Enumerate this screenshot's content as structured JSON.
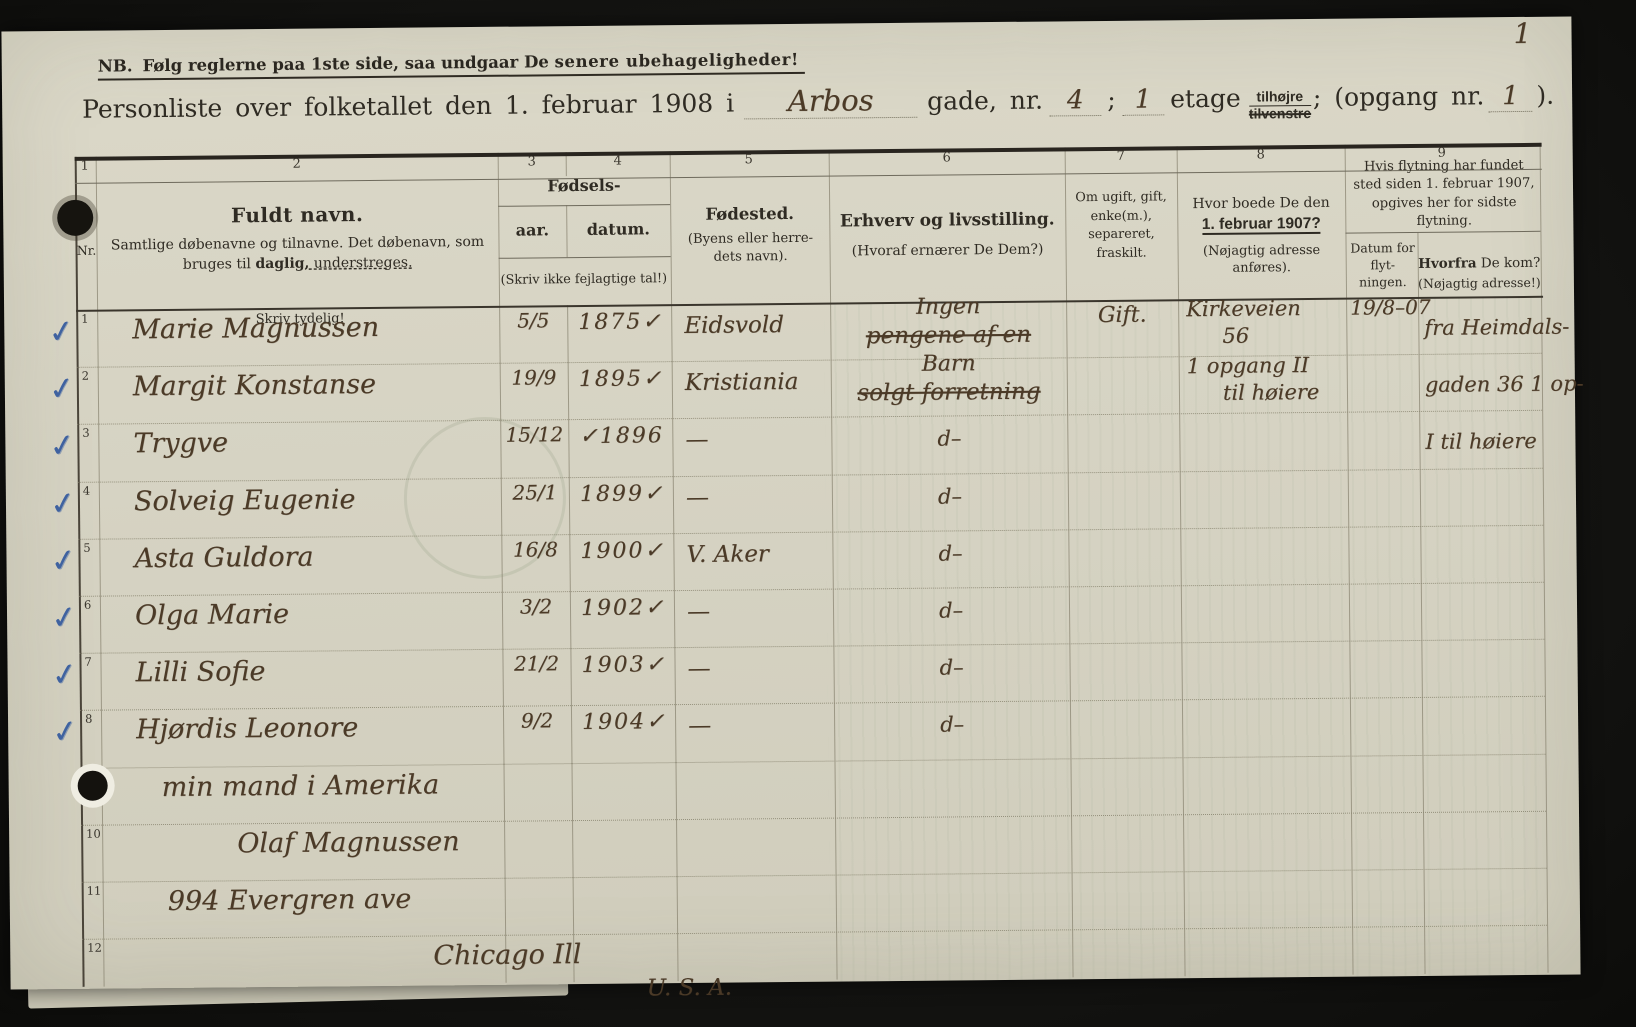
{
  "page": {
    "page_number": "1"
  },
  "notice": {
    "nb": "NB.",
    "text_pre": "Følg reglerne paa 1ste side, saa undgaar De ",
    "text_bold": "senere ubehageligheder!"
  },
  "title": {
    "prefix": "Personliste over folketallet den 1. februar 1908 i",
    "street_value": "Arbos",
    "gade_label": "gade, nr.",
    "street_no": "4",
    "sep1": ";",
    "floor_value": "1",
    "etage_label": "etage",
    "direction_top": "tilhøjre",
    "direction_bottom": "tilvenstre",
    "opgang_label": "; (opgang nr.",
    "opgang_value": "1",
    "close": ")."
  },
  "table": {
    "column_numbers": [
      "1",
      "2",
      "3",
      "4",
      "5",
      "6",
      "7",
      "8",
      "9"
    ],
    "headers": {
      "nr": "Nr.",
      "name_title": "Fuldt navn.",
      "name_sub_a": "Samtlige døbenavne og tilnavne.  Det døbenavn, som bruges til ",
      "name_sub_bold": "daglig,",
      "name_sub_ul": " understreges.",
      "birth_group": "Fødsels-",
      "birth_year": "aar.",
      "birth_date": "datum.",
      "birth_note": "(Skriv ikke fejlagtige tal!)",
      "birthplace_title": "Fødested.",
      "birthplace_sub": "(Byens eller herre-dets navn).",
      "occupation_title": "Erhverv og livsstilling.",
      "occupation_sub": "(Hvoraf ernærer De Dem?)",
      "marital": "Om ugift, gift, enke(m.), separeret, fraskilt.",
      "residence_line1": "Hvor boede De den",
      "residence_line2": "1. februar 1907?",
      "residence_sub": "(Nøjagtig adresse anføres).",
      "moving_group": "Hvis flytning har fundet sted siden 1. februar 1907, opgives her for sidste flytning.",
      "moving_date_label": "Datum for flyt-ningen.",
      "moving_from_bold": "Hvorfra",
      "moving_from_rest": " De kom?",
      "moving_from_sub": "(Nøjagtig adresse!)",
      "write_clearly": "Skriv tydelig!"
    },
    "rows": [
      {
        "nr": "1",
        "check_glyph": "✓",
        "name": "Marie Magnussen",
        "birth_day": "5/5",
        "birth_year": "1875✓",
        "birthplace": "Eidsvold",
        "occupation": "Ingen",
        "occupation_struck": "pengene af en",
        "marital": "Gift.",
        "residence1": "Kirkeveien",
        "residence2": "56",
        "moving_date": "19/8–07",
        "moving_from": "fra Heimdals-"
      },
      {
        "nr": "2",
        "check_glyph": "✓",
        "name": "Margit Konstanse",
        "birth_day": "19/9",
        "birth_year": "1895✓",
        "birthplace": "Kristiania",
        "occupation": "Barn",
        "occupation_struck": "solgt forretning",
        "residence1": "1 opgang II",
        "residence2": "til høiere",
        "moving_from": "gaden 36 1 op-"
      },
      {
        "nr": "3",
        "check_glyph": "✓",
        "name": "Trygve",
        "birth_day": "15/12",
        "birth_year": "✓1896",
        "birthplace": "—",
        "occupation_ditto": "d–",
        "moving_from": "I til høiere"
      },
      {
        "nr": "4",
        "check_glyph": "✓",
        "name": "Solveig Eugenie",
        "birth_day": "25/1",
        "birth_year": "1899✓",
        "birthplace": "—",
        "occupation_ditto": "d–"
      },
      {
        "nr": "5",
        "check_glyph": "✓",
        "name": "Asta Guldora",
        "birth_day": "16/8",
        "birth_year": "1900✓",
        "birthplace": "V. Aker",
        "occupation_ditto": "d–"
      },
      {
        "nr": "6",
        "check_glyph": "✓",
        "name": "Olga Marie",
        "birth_day": "3/2",
        "birth_year": "1902✓",
        "birthplace": "—",
        "occupation_ditto": "d–"
      },
      {
        "nr": "7",
        "check_glyph": "✓",
        "name": "Lilli Sofie",
        "birth_day": "21/2",
        "birth_year": "1903✓",
        "birthplace": "—",
        "occupation_ditto": "d–"
      },
      {
        "nr": "8",
        "check_glyph": "✓",
        "name": "Hjørdis Leonore",
        "birth_day": "9/2",
        "birth_year": "1904✓",
        "birthplace": "—",
        "occupation_ditto": "d–"
      },
      {
        "nr": "9",
        "name": "min mand i Amerika",
        "indent": 25
      },
      {
        "nr": "10",
        "name": "Olaf Magnussen",
        "indent": 100
      },
      {
        "nr": "11",
        "name": "994 Evergren ave",
        "indent": 30
      },
      {
        "nr": "12",
        "name": "Chicago Ill",
        "name2": "U. S. A.",
        "indent": 295
      }
    ]
  }
}
